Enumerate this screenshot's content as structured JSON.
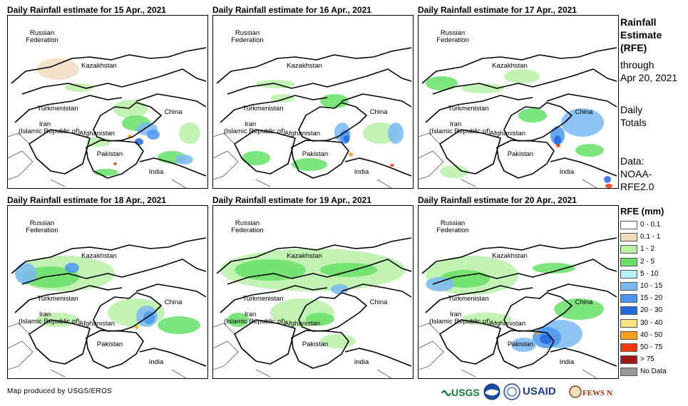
{
  "panels": [
    {
      "title": "Daily Rainfall estimate for 15 Apr., 2021"
    },
    {
      "title": "Daily Rainfall estimate for 16 Apr., 2021"
    },
    {
      "title": "Daily Rainfall estimate for 17 Apr., 2021"
    },
    {
      "title": "Daily Rainfall estimate for 18 Apr., 2021"
    },
    {
      "title": "Daily Rainfall estimate for 19 Apr., 2021"
    },
    {
      "title": "Daily Rainfall estimate for 20 Apr., 2021"
    }
  ],
  "map_labels": {
    "russia_1": "Russian",
    "russia_2": "Federation",
    "kazakhstan": "Kazakhstan",
    "turkmenistan": "Turkmenistan",
    "iran_1": "Iran",
    "iran_2": "(Islamic Republic of)",
    "afghanistan": "Afghanistan",
    "pakistan": "Pakistan",
    "china": "China",
    "india": "India"
  },
  "side_text": {
    "title_1": "Rainfall",
    "title_2": "Estimate",
    "title_3": "(RFE)",
    "through": "through",
    "date": "Apr 20, 2021",
    "daily_1": "Daily",
    "daily_2": "Totals",
    "data_1": "Data:",
    "data_2": "NOAA-",
    "data_3": "RFE2.0"
  },
  "legend": {
    "title": "RFE (mm)",
    "items": [
      {
        "label": "0 - 0.1",
        "color": "#ffffff"
      },
      {
        "label": "0.1 - 1",
        "color": "#f2dcc0"
      },
      {
        "label": "1 - 2",
        "color": "#b8f0a8"
      },
      {
        "label": "2 - 5",
        "color": "#66e066"
      },
      {
        "label": "5 - 10",
        "color": "#b8f0f8"
      },
      {
        "label": "10 - 15",
        "color": "#7ab8f5"
      },
      {
        "label": "15 - 20",
        "color": "#4a96f0"
      },
      {
        "label": "20 - 30",
        "color": "#2468e0"
      },
      {
        "label": "30 - 40",
        "color": "#f8e680"
      },
      {
        "label": "40 - 50",
        "color": "#f8a020"
      },
      {
        "label": "50 - 75",
        "color": "#f03a10"
      },
      {
        "label": "> 75",
        "color": "#a01818"
      },
      {
        "label": "No Data",
        "color": "#999999"
      }
    ]
  },
  "credit": "Map produced by USGS/EROS",
  "logos": {
    "usgs": "USGS",
    "usaid": "USAID",
    "fewsnet": "FEWS NET"
  }
}
